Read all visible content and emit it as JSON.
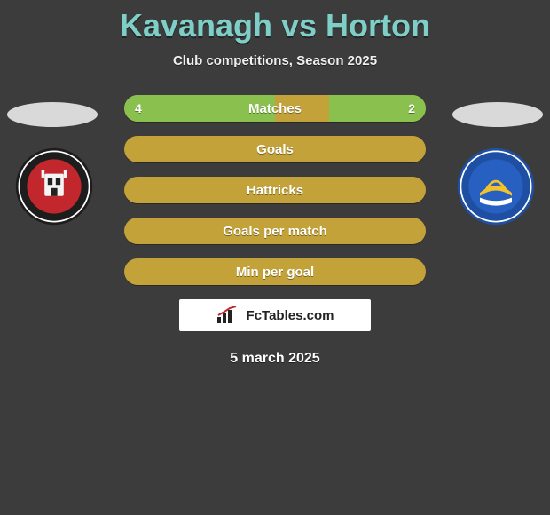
{
  "title": "Kavanagh vs Horton",
  "subtitle": "Club competitions, Season 2025",
  "date": "5 march 2025",
  "logo_text": "FcTables.com",
  "colors": {
    "background": "#3c3c3c",
    "title": "#7ecfc8",
    "bar_base": "#c4a23a",
    "bar_fill": "#89c04e",
    "oval": "#d9d9d9",
    "logo_bg": "#ffffff"
  },
  "crest_left": {
    "outer": "#1d1d1d",
    "ring": "#ffffff",
    "inner": "#c1272d",
    "accent": "#f4f4f4"
  },
  "crest_right": {
    "outer": "#1e4fa3",
    "ring": "#ffffff",
    "inner": "#2760c1",
    "accent": "#f3c12b"
  },
  "stats": [
    {
      "label": "Matches",
      "left_val": "4",
      "right_val": "2",
      "left_pct": 50,
      "right_pct": 32,
      "show_vals": true
    },
    {
      "label": "Goals",
      "left_val": "",
      "right_val": "",
      "left_pct": 0,
      "right_pct": 0,
      "show_vals": false
    },
    {
      "label": "Hattricks",
      "left_val": "",
      "right_val": "",
      "left_pct": 0,
      "right_pct": 0,
      "show_vals": false
    },
    {
      "label": "Goals per match",
      "left_val": "",
      "right_val": "",
      "left_pct": 0,
      "right_pct": 0,
      "show_vals": false
    },
    {
      "label": "Min per goal",
      "left_val": "",
      "right_val": "",
      "left_pct": 0,
      "right_pct": 0,
      "show_vals": false
    }
  ]
}
